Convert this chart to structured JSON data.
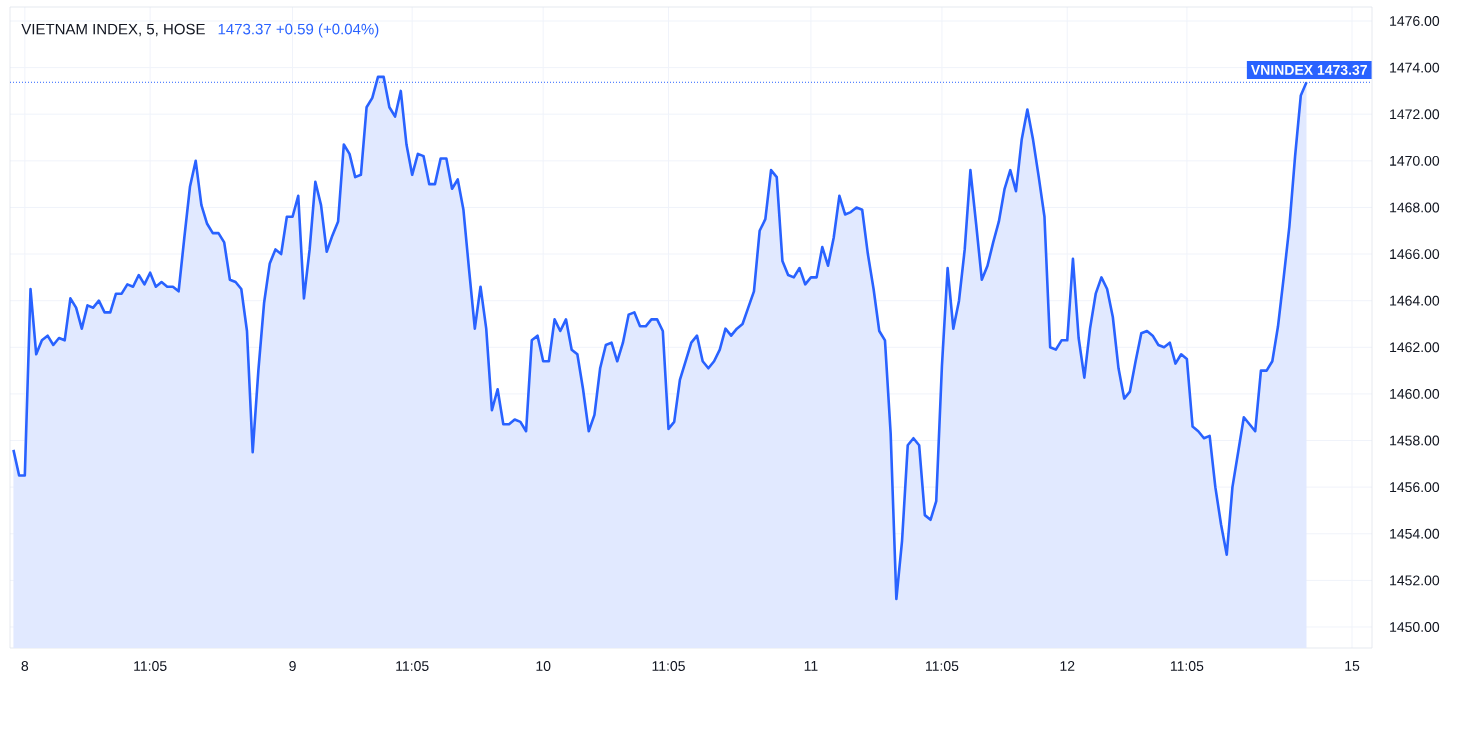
{
  "chart_data": {
    "type": "area",
    "title": "VIETNAM INDEX, 5, HOSE",
    "subtitle": "1473.37  +0.59 (+0.04%)",
    "categories": [
      null,
      null,
      "8",
      null,
      null,
      null,
      null,
      null,
      null,
      null,
      null,
      null,
      null,
      null,
      null,
      null,
      null,
      null,
      null,
      null,
      null,
      null,
      null,
      null,
      "11:05",
      null,
      null,
      null,
      null,
      null,
      null,
      null,
      null,
      null,
      null,
      null,
      null,
      null,
      null,
      null,
      null,
      null,
      null,
      null,
      null,
      null,
      null,
      null,
      null,
      "9",
      null,
      null,
      null,
      null,
      null,
      null,
      null,
      null,
      null,
      null,
      null,
      null,
      null,
      null,
      null,
      null,
      null,
      null,
      null,
      null,
      "11:05",
      null,
      null,
      null,
      null,
      null,
      null,
      null,
      null,
      null,
      null,
      null,
      null,
      null,
      null,
      null,
      null,
      null,
      null,
      null,
      null,
      null,
      null,
      "10",
      null,
      null,
      null,
      null,
      null,
      null,
      null,
      null,
      null,
      null,
      null,
      null,
      null,
      null,
      null,
      null,
      null,
      null,
      null,
      null,
      null,
      "11:05",
      null,
      null,
      null,
      null,
      null,
      null,
      null,
      null,
      null,
      null,
      null,
      null,
      null,
      null,
      null,
      null,
      null,
      null,
      null,
      null,
      null,
      null,
      null,
      null,
      "11",
      null,
      null,
      null,
      null,
      null,
      null,
      null,
      null,
      null,
      null,
      null,
      null,
      null,
      null,
      null,
      null,
      null,
      null,
      null,
      null,
      null,
      null,
      "11:05",
      null,
      null,
      null,
      null,
      null,
      null,
      null,
      null,
      null,
      null,
      null,
      null,
      null,
      null,
      null,
      null,
      null,
      null,
      null,
      null,
      null,
      "12",
      null,
      null,
      null,
      null,
      null,
      null,
      null,
      null,
      null,
      null,
      null,
      null,
      null,
      null,
      null,
      null,
      null,
      null,
      null,
      null,
      "11:05",
      null,
      null,
      null,
      null,
      null,
      null,
      null,
      null,
      null,
      null,
      null,
      null,
      null,
      null,
      null,
      null,
      null,
      null,
      null,
      null,
      null,
      null,
      null,
      null,
      null,
      null,
      null,
      null,
      "15"
    ],
    "series": [
      {
        "color": "#2962ff",
        "values": [
          1457.6,
          1456.5,
          1456.5,
          1464.5,
          1461.7,
          1462.3,
          1462.5,
          1462.1,
          1462.4,
          1462.3,
          1464.1,
          1463.7,
          1462.8,
          1463.8,
          1463.7,
          1464.0,
          1463.5,
          1463.5,
          1464.3,
          1464.3,
          1464.7,
          1464.6,
          1465.1,
          1464.7,
          1465.2,
          1464.6,
          1464.8,
          1464.6,
          1464.6,
          1464.4,
          1466.7,
          1468.9,
          1470.0,
          1468.1,
          1467.3,
          1466.9,
          1466.9,
          1466.5,
          1464.9,
          1464.8,
          1464.5,
          1462.7,
          1457.5,
          1461.0,
          1463.9,
          1465.6,
          1466.2,
          1466.0,
          1467.6,
          1467.6,
          1468.5,
          1464.1,
          1466.2,
          1469.1,
          1468.1,
          1466.1,
          1466.8,
          1467.4,
          1470.7,
          1470.3,
          1469.3,
          1469.4,
          1472.3,
          1472.7,
          1473.6,
          1473.6,
          1472.3,
          1471.9,
          1473.0,
          1470.7,
          1469.4,
          1470.3,
          1470.2,
          1469.0,
          1469.0,
          1470.1,
          1470.1,
          1468.8,
          1469.2,
          1467.9,
          1465.3,
          1462.8,
          1464.6,
          1462.8,
          1459.3,
          1460.2,
          1458.7,
          1458.7,
          1458.9,
          1458.8,
          1458.4,
          1462.3,
          1462.5,
          1461.4,
          1461.4,
          1463.2,
          1462.7,
          1463.2,
          1461.9,
          1461.7,
          1460.2,
          1458.4,
          1459.1,
          1461.1,
          1462.1,
          1462.2,
          1461.4,
          1462.2,
          1463.4,
          1463.5,
          1462.9,
          1462.9,
          1463.2,
          1463.2,
          1462.7,
          1458.5,
          1458.8,
          1460.6,
          1461.4,
          1462.2,
          1462.5,
          1461.4,
          1461.1,
          1461.4,
          1461.9,
          1462.8,
          1462.5,
          1462.8,
          1463.0,
          1463.7,
          1464.4,
          1467.0,
          1467.5,
          1469.6,
          1469.3,
          1465.7,
          1465.1,
          1465.0,
          1465.4,
          1464.7,
          1465.0,
          1465.0,
          1466.3,
          1465.5,
          1466.7,
          1468.5,
          1467.7,
          1467.8,
          1468.0,
          1467.9,
          1466.0,
          1464.5,
          1462.7,
          1462.3,
          1458.3,
          1451.2,
          1453.7,
          1457.8,
          1458.1,
          1457.8,
          1454.8,
          1454.6,
          1455.4,
          1461.2,
          1465.4,
          1462.8,
          1464.0,
          1466.2,
          1469.6,
          1467.3,
          1464.9,
          1465.5,
          1466.5,
          1467.4,
          1468.8,
          1469.6,
          1468.7,
          1470.9,
          1472.2,
          1470.9,
          1469.3,
          1467.6,
          1462.0,
          1461.9,
          1462.3,
          1462.3,
          1465.8,
          1462.4,
          1460.7,
          1462.8,
          1464.3,
          1465.0,
          1464.5,
          1463.3,
          1461.1,
          1459.8,
          1460.1,
          1461.4,
          1462.6,
          1462.7,
          1462.5,
          1462.1,
          1462.0,
          1462.2,
          1461.3,
          1461.7,
          1461.5,
          1458.6,
          1458.4,
          1458.1,
          1458.2,
          1456.0,
          1454.4,
          1453.1,
          1456.0,
          1457.5,
          1459.0,
          1458.7,
          1458.4,
          1461.0,
          1461.0,
          1461.4,
          1462.9,
          1465.0,
          1467.2,
          1470.2,
          1472.8,
          1473.37,
          null,
          null,
          null,
          null,
          null,
          null,
          null,
          null
        ]
      }
    ],
    "ylim": [
      1449.1,
      1476.6
    ],
    "yticks": [
      {
        "value": 1450,
        "label": "1450.00"
      },
      {
        "value": 1452,
        "label": "1452.00"
      },
      {
        "value": 1454,
        "label": "1454.00"
      },
      {
        "value": 1456,
        "label": "1456.00"
      },
      {
        "value": 1458,
        "label": "1458.00"
      },
      {
        "value": 1460,
        "label": "1460.00"
      },
      {
        "value": 1462,
        "label": "1462.00"
      },
      {
        "value": 1464,
        "label": "1464.00"
      },
      {
        "value": 1466,
        "label": "1466.00"
      },
      {
        "value": 1468,
        "label": "1468.00"
      },
      {
        "value": 1470,
        "label": "1470.00"
      },
      {
        "value": 1472,
        "label": "1472.00"
      },
      {
        "value": 1474,
        "label": "1474.00"
      },
      {
        "value": 1476,
        "label": "1476.00"
      }
    ],
    "ref_lines": [
      {
        "axis": "y",
        "value": 1473.37,
        "label": "VNINDEX  1473.37",
        "color": "#2962ff",
        "line_style": "dotted"
      }
    ],
    "grid": true
  }
}
